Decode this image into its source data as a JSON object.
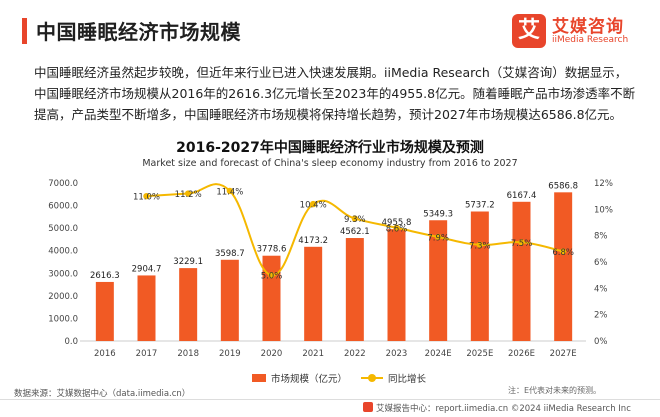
{
  "header": {
    "title": "中国睡眠经济市场规模",
    "logo_mark": "艾",
    "logo_cn": "艾媒咨询",
    "logo_en": "iiMedia Research"
  },
  "description": {
    "lines": [
      "中国睡眠经济虽然起步较晚，但近年来行业已进入快速发展期。iiMedia Research（艾媒咨询）数据显示，",
      "中国睡眠经济市场规模从2016年的2616.3亿元增长至2023年的4955.8亿元。随着睡眠产品市场渗透率不断",
      "提高，产品类型不断增多，中国睡眠经济市场规模将保持增长趋势，预计2027年市场规模达6586.8亿元。"
    ]
  },
  "chart_data": {
    "type": "bar",
    "title": "2016-2027年中国睡眠经济行业市场规模及预测",
    "subtitle": "Market size and forecast of China's sleep economy industry from 2016 to 2027",
    "categories": [
      "2016",
      "2017",
      "2018",
      "2019",
      "2020",
      "2021",
      "2022",
      "2023",
      "2024E",
      "2025E",
      "2026E",
      "2027E"
    ],
    "series": [
      {
        "name": "市场规模（亿元）",
        "type": "bar",
        "axis": "left",
        "color": "#f15a24",
        "values": [
          2616.3,
          2904.7,
          3229.1,
          3598.7,
          3778.6,
          4173.2,
          4562.1,
          4955.8,
          5349.3,
          5737.2,
          6167.4,
          6586.8
        ],
        "labels": [
          "2616.3",
          "2904.7",
          "3229.1",
          "3598.7",
          "3778.6",
          "4173.2",
          "4562.1",
          "4955.8",
          "5349.3",
          "5737.2",
          "6167.4",
          "6586.8"
        ]
      },
      {
        "name": "同比增长",
        "type": "line",
        "axis": "right",
        "color": "#f5b800",
        "values": [
          null,
          11.0,
          11.2,
          11.4,
          5.0,
          10.4,
          9.3,
          8.6,
          7.9,
          7.3,
          7.5,
          6.8
        ],
        "labels": [
          "",
          "11.0%",
          "11.2%",
          "11.4%",
          "5.0%",
          "10.4%",
          "9.3%",
          "8.6%",
          "7.9%",
          "7.3%",
          "7.5%",
          "6.8%"
        ]
      }
    ],
    "y_left": {
      "min": 0,
      "max": 7000,
      "step": 1000,
      "tick_labels": [
        "0.0",
        "1000.0",
        "2000.0",
        "3000.0",
        "4000.0",
        "5000.0",
        "6000.0",
        "7000.0"
      ]
    },
    "y_right": {
      "min": 0,
      "max": 12,
      "step": 2,
      "tick_labels": [
        "0%",
        "2%",
        "4%",
        "6%",
        "8%",
        "10%",
        "12%"
      ]
    },
    "grid": false,
    "legend": "bottom"
  },
  "legend": {
    "bar_label": "市场规模（亿元）",
    "line_label": "同比增长"
  },
  "note": "注：E代表对未来的预测。",
  "source": "数据来源：艾媒数据中心（data.iimedia.cn）",
  "footer": "艾媒报告中心：report.iimedia.cn  ©2024  iiMedia Research Inc"
}
